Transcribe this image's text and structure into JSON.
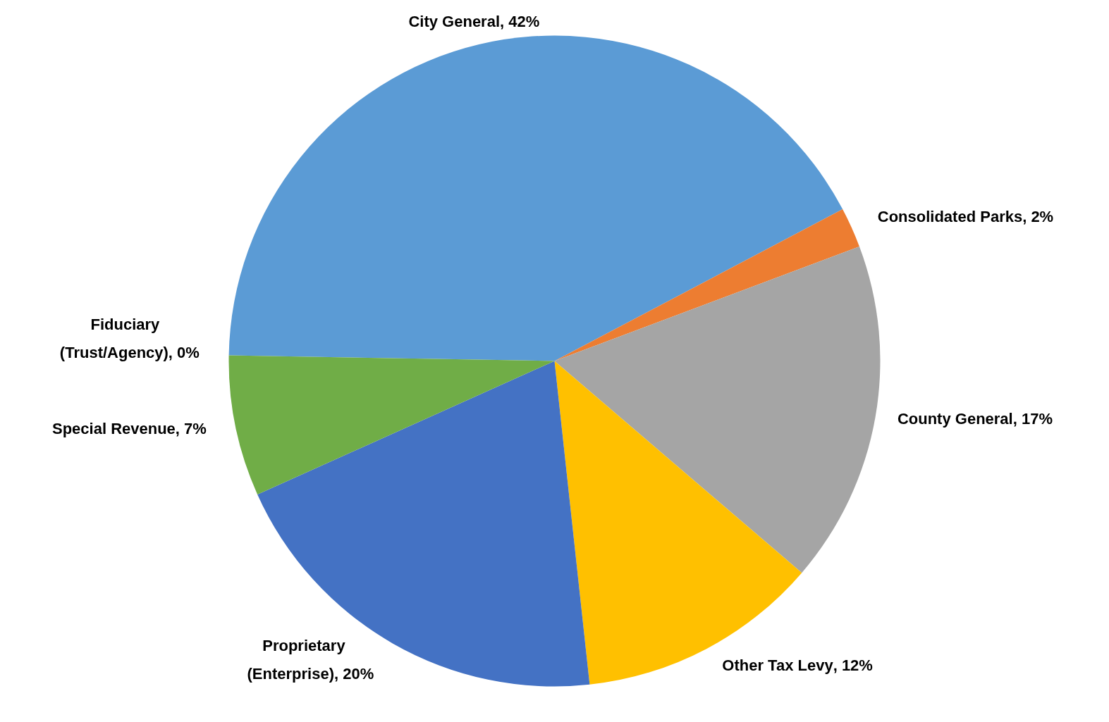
{
  "chart_data": {
    "type": "pie",
    "categories": [
      "City General",
      "Consolidated Parks",
      "County General",
      "Other Tax Levy",
      "Proprietary (Enterprise)",
      "Special Revenue",
      "Fiduciary (Trust/Agency)"
    ],
    "values": [
      42,
      2,
      17,
      12,
      20,
      7,
      0
    ],
    "colors": [
      "#5b9bd5",
      "#ed7d31",
      "#a5a5a5",
      "#ffc000",
      "#4472c4",
      "#70ad47",
      "#255e91"
    ],
    "value_labels": [
      ", 42%",
      ", 2%",
      ", 17%",
      ", 12%",
      ", 20%",
      ", 7%",
      ", 0%"
    ]
  }
}
